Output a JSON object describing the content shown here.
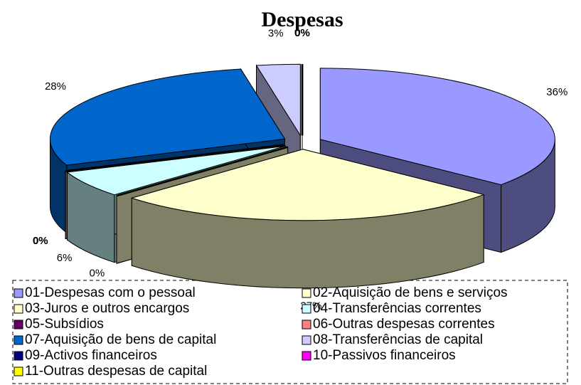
{
  "chart_data": {
    "type": "pie3d",
    "title": "Despesas",
    "categories": [
      "01-Despesas com o pessoal",
      "02-Aquisição de bens e serviços",
      "03-Juros e outros encargos",
      "04-Transferências correntes",
      "05-Subsídios",
      "06-Outras despesas correntes",
      "07-Aquisição de bens de capital",
      "08-Transferências de capital",
      "09-Activos financeiros",
      "10-Passivos financeiros",
      "11-Outras despesas de capital"
    ],
    "values": [
      36,
      27,
      0,
      6,
      0,
      0,
      28,
      3,
      0,
      0,
      0
    ],
    "value_labels": [
      "36%",
      "27%",
      "0%",
      "6%",
      "0%",
      "0%",
      "28%",
      "3%",
      "0%",
      "0%",
      "0%"
    ],
    "colors": [
      "#9999ff",
      "#ffffcc",
      "#ffffcc",
      "#ccffff",
      "#660066",
      "#ff8080",
      "#0066cc",
      "#ccccff",
      "#000080",
      "#ff00ff",
      "#ffff00"
    ],
    "legend": "bottom"
  }
}
